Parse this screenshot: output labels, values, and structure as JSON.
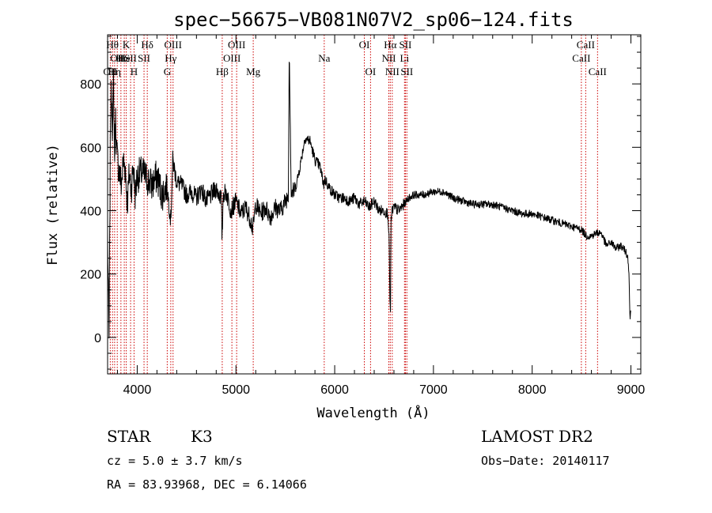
{
  "chart_data": {
    "type": "line",
    "title": "spec−56675−VB081N07V2_sp06−124.fits",
    "xlabel": "Wavelength (Å)",
    "ylabel": "Flux (relative)",
    "xlim": [
      3700,
      9100
    ],
    "ylim": [
      -115,
      955
    ],
    "xticks": [
      4000,
      5000,
      6000,
      7000,
      8000,
      9000
    ],
    "yticks": [
      0,
      200,
      400,
      600,
      800
    ],
    "minor_xtick_step": 200,
    "minor_ytick_step": 50,
    "grid": false,
    "series_color": "#000000",
    "line_marker_color": "#cc0000",
    "spectrum": {
      "x": [
        3700,
        3715,
        3730,
        3740,
        3750,
        3760,
        3770,
        3780,
        3790,
        3800,
        3820,
        3840,
        3860,
        3880,
        3900,
        3920,
        3940,
        3960,
        3980,
        4000,
        4050,
        4100,
        4150,
        4200,
        4250,
        4300,
        4340,
        4360,
        4400,
        4450,
        4500,
        4550,
        4600,
        4650,
        4700,
        4750,
        4800,
        4850,
        4860,
        4870,
        4900,
        4950,
        5000,
        5050,
        5100,
        5150,
        5170,
        5200,
        5250,
        5300,
        5350,
        5400,
        5450,
        5500,
        5530,
        5540,
        5560,
        5600,
        5630,
        5660,
        5700,
        5750,
        5800,
        5850,
        5890,
        5900,
        5950,
        6000,
        6050,
        6100,
        6150,
        6200,
        6250,
        6300,
        6350,
        6400,
        6450,
        6500,
        6540,
        6550,
        6560,
        6565,
        6570,
        6580,
        6600,
        6650,
        6700,
        6750,
        6800,
        6900,
        7000,
        7100,
        7200,
        7300,
        7400,
        7500,
        7600,
        7700,
        7800,
        7900,
        8000,
        8100,
        8200,
        8300,
        8400,
        8500,
        8550,
        8600,
        8650,
        8700,
        8750,
        8800,
        8850,
        8900,
        8950,
        8970,
        8980,
        8990,
        9000
      ],
      "y": [
        320,
        -5,
        720,
        780,
        640,
        820,
        560,
        700,
        600,
        560,
        520,
        480,
        560,
        530,
        420,
        520,
        470,
        540,
        450,
        510,
        520,
        500,
        480,
        510,
        450,
        480,
        370,
        560,
        490,
        480,
        450,
        460,
        440,
        470,
        430,
        450,
        470,
        440,
        300,
        450,
        460,
        400,
        430,
        390,
        410,
        370,
        340,
        420,
        390,
        410,
        380,
        410,
        400,
        430,
        450,
        920,
        450,
        470,
        510,
        560,
        630,
        620,
        560,
        540,
        480,
        500,
        470,
        450,
        440,
        440,
        430,
        440,
        420,
        430,
        410,
        430,
        400,
        400,
        390,
        320,
        110,
        80,
        360,
        400,
        410,
        400,
        420,
        440,
        450,
        450,
        460,
        460,
        440,
        430,
        420,
        420,
        420,
        410,
        400,
        390,
        390,
        380,
        370,
        360,
        350,
        340,
        320,
        320,
        330,
        330,
        290,
        300,
        280,
        290,
        270,
        250,
        210,
        60,
        80
      ]
    },
    "lines": [
      {
        "x": 3727,
        "row": 3,
        "label": "OII"
      },
      {
        "x": 3750,
        "row": 1,
        "label": "Hθ"
      },
      {
        "x": 3771,
        "row": 3,
        "label": "Hη"
      },
      {
        "x": 3798,
        "row": 2,
        "label": "OII"
      },
      {
        "x": 3835,
        "row": 2,
        "label": "Hι"
      },
      {
        "x": 3869,
        "row": 2,
        "label": "He"
      },
      {
        "x": 3889,
        "row": 1,
        "label": "K"
      },
      {
        "x": 3933,
        "row": 2,
        "label": "SII"
      },
      {
        "x": 3968,
        "row": 3,
        "label": "H"
      },
      {
        "x": 4069,
        "row": 2,
        "label": "SII"
      },
      {
        "x": 4102,
        "row": 1,
        "label": "Hδ"
      },
      {
        "x": 4304,
        "row": 3,
        "label": "G"
      },
      {
        "x": 4340,
        "row": 2,
        "label": "Hγ"
      },
      {
        "x": 4363,
        "row": 1,
        "label": "OIII"
      },
      {
        "x": 4861,
        "row": 3,
        "label": "Hβ"
      },
      {
        "x": 4959,
        "row": 2,
        "label": "OIII"
      },
      {
        "x": 5007,
        "row": 1,
        "label": "OIII"
      },
      {
        "x": 5175,
        "row": 3,
        "label": "Mg"
      },
      {
        "x": 5894,
        "row": 2,
        "label": "Na"
      },
      {
        "x": 6300,
        "row": 1,
        "label": "OI"
      },
      {
        "x": 6363,
        "row": 3,
        "label": "OI"
      },
      {
        "x": 6548,
        "row": 2,
        "label": "NII"
      },
      {
        "x": 6563,
        "row": 1,
        "label": "Hα"
      },
      {
        "x": 6583,
        "row": 3,
        "label": "NII"
      },
      {
        "x": 6707,
        "row": 2,
        "label": "Li"
      },
      {
        "x": 6716,
        "row": 1,
        "label": "SII"
      },
      {
        "x": 6731,
        "row": 3,
        "label": "SII"
      },
      {
        "x": 8498,
        "row": 2,
        "label": "CaII"
      },
      {
        "x": 8542,
        "row": 1,
        "label": "CaII"
      },
      {
        "x": 8662,
        "row": 3,
        "label": "CaII"
      }
    ]
  },
  "info": {
    "class_label": "STAR",
    "subclass": "K3",
    "survey": "LAMOST DR2",
    "redshift": "cz = 5.0 ± 3.7 km/s",
    "obs_date": "Obs−Date: 20140117",
    "coords": "RA =  83.93968, DEC =   6.14066"
  }
}
